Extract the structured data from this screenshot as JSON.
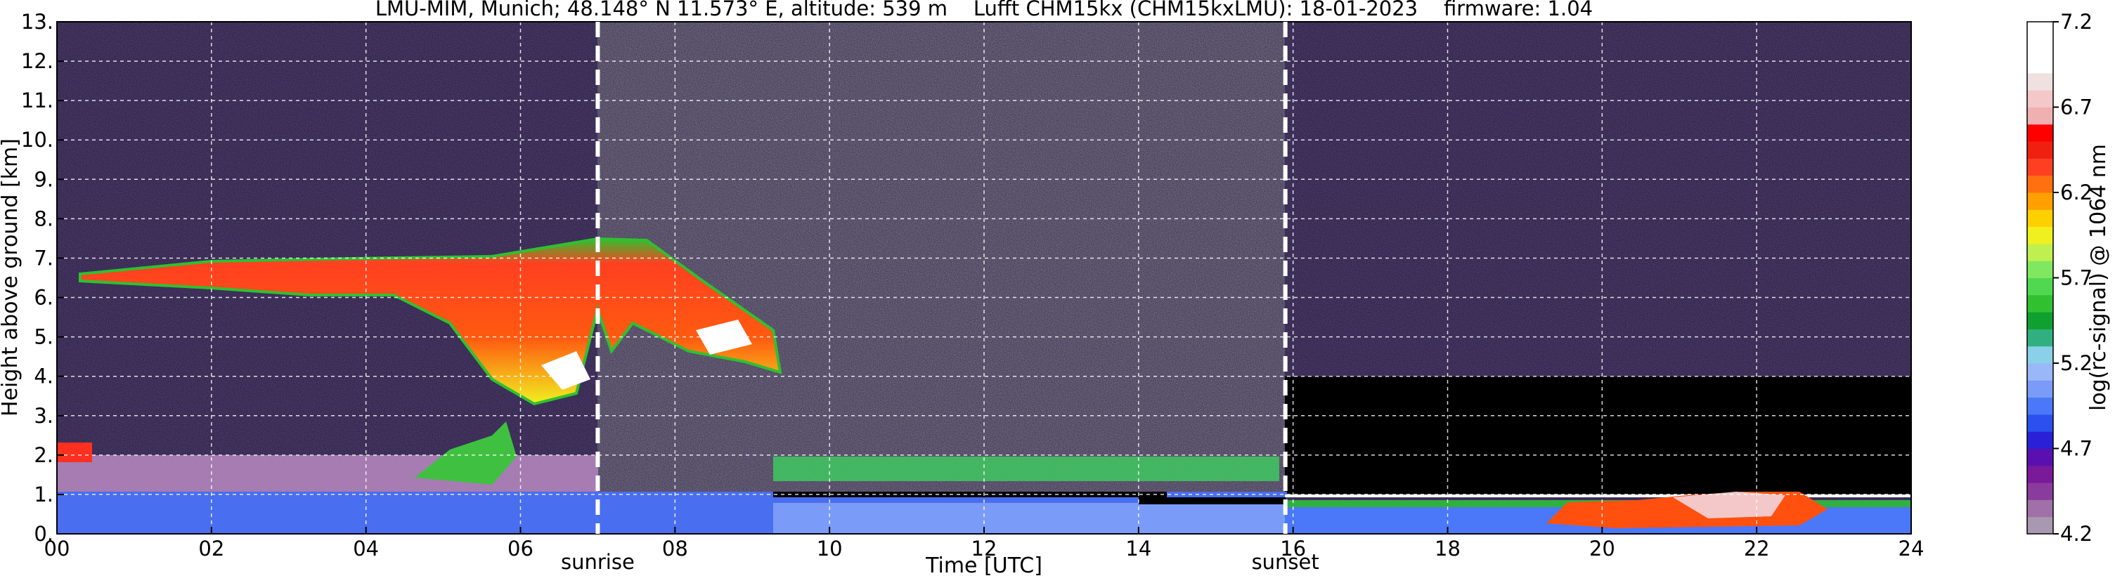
{
  "chart_data": {
    "type": "heatmap",
    "title": "LMU-MIM, Munich; 48.148° N 11.573° E, altitude: 539 m    Lufft CHM15kx (CHM15kxLMU): 18-01-2023    firmware: 1.04",
    "xlabel": "Time [UTC]",
    "ylabel": "Height above ground [km]",
    "xlim": [
      0,
      24
    ],
    "xticks": [
      {
        "value": 0,
        "label": "00"
      },
      {
        "value": 2,
        "label": "02"
      },
      {
        "value": 4,
        "label": "04"
      },
      {
        "value": 6,
        "label": "06"
      },
      {
        "value": 8,
        "label": "08"
      },
      {
        "value": 10,
        "label": "10"
      },
      {
        "value": 12,
        "label": "12"
      },
      {
        "value": 14,
        "label": "14"
      },
      {
        "value": 16,
        "label": "16"
      },
      {
        "value": 18,
        "label": "18"
      },
      {
        "value": 20,
        "label": "20"
      },
      {
        "value": 22,
        "label": "22"
      },
      {
        "value": 24,
        "label": "24"
      }
    ],
    "ylim": [
      0,
      13
    ],
    "yticks": [
      {
        "value": 0,
        "label": "0."
      },
      {
        "value": 1,
        "label": "1."
      },
      {
        "value": 2,
        "label": "2."
      },
      {
        "value": 3,
        "label": "3."
      },
      {
        "value": 4,
        "label": "4."
      },
      {
        "value": 5,
        "label": "5."
      },
      {
        "value": 6,
        "label": "6."
      },
      {
        "value": 7,
        "label": "7."
      },
      {
        "value": 8,
        "label": "8."
      },
      {
        "value": 9,
        "label": "9."
      },
      {
        "value": 10,
        "label": "10."
      },
      {
        "value": 11,
        "label": "11."
      },
      {
        "value": 12,
        "label": "12."
      },
      {
        "value": 13,
        "label": "13."
      }
    ],
    "grid": true,
    "events": [
      {
        "label": "sunrise",
        "x": 7.0
      },
      {
        "label": "sunset",
        "x": 15.9
      }
    ],
    "colorbar": {
      "label": "log(rc-signal) @ 1064 nm",
      "zlim": [
        4.2,
        7.2
      ],
      "zticks": [
        4.2,
        4.7,
        5.2,
        5.7,
        6.2,
        6.7,
        7.2
      ],
      "colors": [
        "#a898b0",
        "#a070a8",
        "#8a3c9c",
        "#7a1a9a",
        "#5a10b0",
        "#2a20d8",
        "#2a50f0",
        "#4a78f8",
        "#7a9cf8",
        "#9ab8f8",
        "#8ad0e8",
        "#30b080",
        "#10a030",
        "#30c030",
        "#50d850",
        "#80e860",
        "#c0f050",
        "#f0f020",
        "#ffd000",
        "#ffa000",
        "#ff7010",
        "#ff4020",
        "#f02010",
        "#ff0000",
        "#f0b0b0",
        "#f4c8c8",
        "#f0e0e0",
        "#ffffff",
        "#ffffff",
        "#ffffff"
      ]
    }
  }
}
